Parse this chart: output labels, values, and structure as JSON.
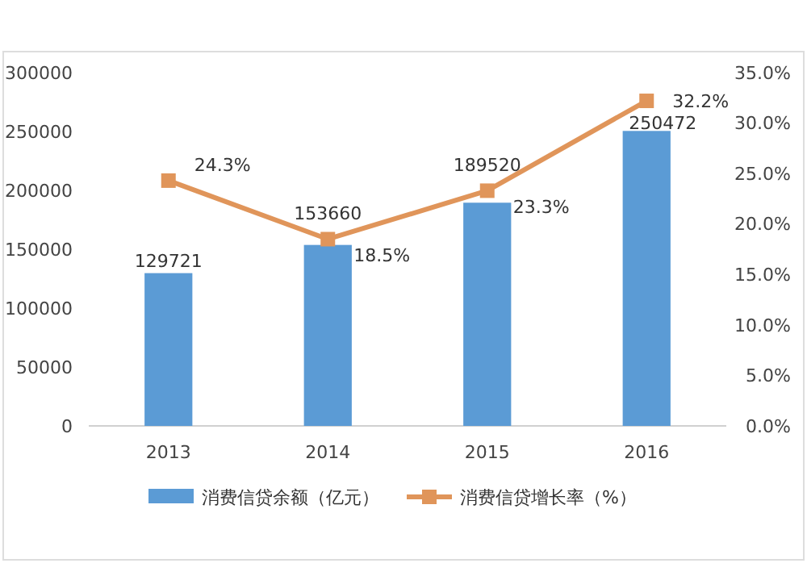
{
  "chart_data": {
    "type": "bar",
    "categories": [
      "2013",
      "2014",
      "2015",
      "2016"
    ],
    "series": [
      {
        "name": "消费信贷余额（亿元）",
        "color": "#5b9bd5",
        "values": [
          129721,
          153660,
          189520,
          250472
        ]
      },
      {
        "name": "消费信贷增长率（%）",
        "type": "line",
        "axis": "y2",
        "color": "#e0955a",
        "values": [
          24.3,
          18.5,
          23.3,
          32.2
        ],
        "value_labels": [
          "24.3%",
          "18.5%",
          "23.3%",
          "32.2%"
        ]
      }
    ],
    "ylim": [
      0,
      300000
    ],
    "yticks": [
      0,
      50000,
      100000,
      150000,
      200000,
      250000,
      300000
    ],
    "y2lim": [
      0,
      35
    ],
    "y2ticks": [
      {
        "value": 0,
        "label": "0.0%"
      },
      {
        "value": 5,
        "label": "5.0%"
      },
      {
        "value": 10,
        "label": "10.0%"
      },
      {
        "value": 15,
        "label": "15.0%"
      },
      {
        "value": 20,
        "label": "20.0%"
      },
      {
        "value": 25,
        "label": "25.0%"
      },
      {
        "value": 30,
        "label": "30.0%"
      },
      {
        "value": 35,
        "label": "35.0%"
      }
    ],
    "data_labels": true,
    "marker": "square",
    "legend": "bottom",
    "grid": false
  }
}
